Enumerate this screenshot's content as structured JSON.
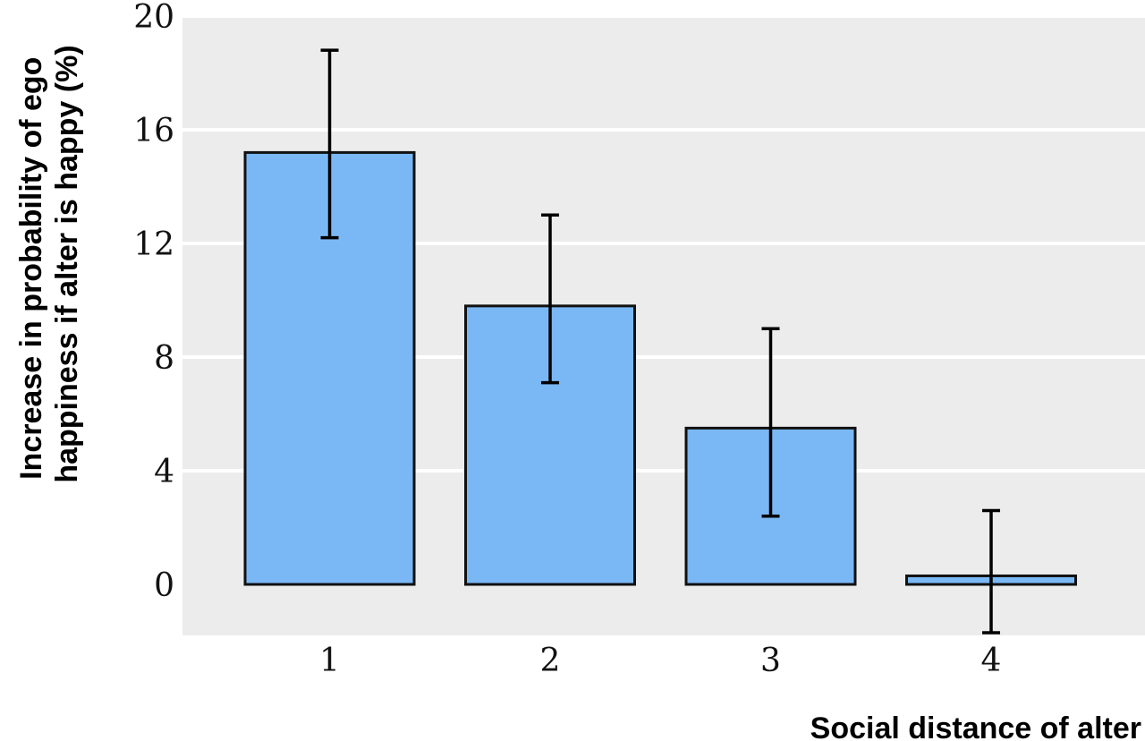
{
  "chart_data": {
    "type": "bar",
    "categories": [
      "1",
      "2",
      "3",
      "4"
    ],
    "values": [
      15.2,
      9.8,
      5.5,
      0.3
    ],
    "error_bars": {
      "lower": [
        12.2,
        7.1,
        2.4,
        -1.7
      ],
      "upper": [
        18.8,
        13.0,
        9.0,
        2.6
      ]
    },
    "xlabel": "Social distance of alter",
    "ylabel_lines": [
      "Increase in probability of ego",
      "happiness if alter is happy (%)"
    ],
    "ylim": [
      0,
      20
    ],
    "yticks": [
      0,
      4,
      8,
      12,
      16,
      20
    ],
    "grid": true,
    "colors": {
      "bar_fill": "#7ab8f5",
      "bar_stroke": "#111111",
      "plot_background": "#ececec",
      "grid": "#ffffff"
    }
  }
}
